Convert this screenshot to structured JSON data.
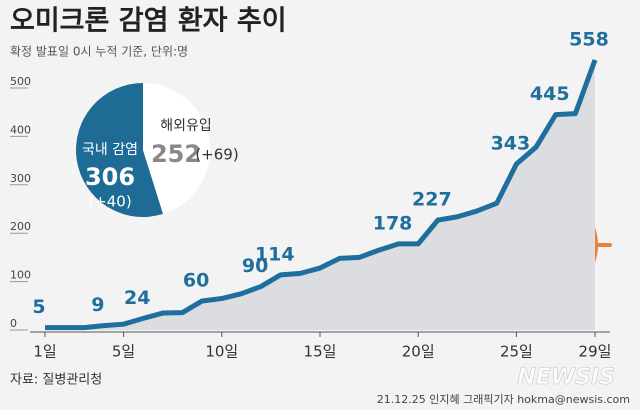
{
  "chart_data": [
    {
      "type": "area-line",
      "title": "오미크론 감염 환자 추이",
      "subtitle": "확정 발표일 0시 누적 기준, 단위:명",
      "x": [
        1,
        2,
        3,
        4,
        5,
        6,
        7,
        8,
        9,
        10,
        11,
        12,
        13,
        14,
        15,
        16,
        17,
        18,
        19,
        20,
        21,
        22,
        23,
        24,
        25,
        26,
        27,
        28,
        29
      ],
      "values": [
        5,
        5,
        5,
        9,
        12,
        24,
        35,
        36,
        60,
        65,
        75,
        90,
        114,
        117,
        128,
        148,
        150,
        165,
        178,
        178,
        227,
        234,
        246,
        262,
        343,
        378,
        445,
        447,
        558
      ],
      "value_labels": [
        5,
        null,
        null,
        9,
        null,
        24,
        null,
        null,
        60,
        null,
        null,
        90,
        114,
        null,
        null,
        null,
        null,
        null,
        178,
        null,
        227,
        null,
        null,
        null,
        343,
        null,
        445,
        null,
        558
      ],
      "color": "#1f6f9e",
      "area_color": "#dcdde0",
      "xlim": [
        1,
        29
      ],
      "xticks": [
        {
          "value": 1,
          "label": "1일"
        },
        {
          "value": 5,
          "label": "5일"
        },
        {
          "value": 10,
          "label": "10일"
        },
        {
          "value": 15,
          "label": "15일"
        },
        {
          "value": 20,
          "label": "20일"
        },
        {
          "value": 25,
          "label": "25일"
        },
        {
          "value": 29,
          "label": "29일"
        }
      ],
      "ylim": [
        0,
        500
      ],
      "yticks": [
        0,
        100,
        200,
        300,
        400,
        500
      ],
      "source": "자료: 질병관리청",
      "credit": "21.12.25 인지혜 그래픽기자 hokma@newsis.com",
      "watermark": "NEWSIS"
    },
    {
      "type": "pie",
      "labels": [
        "국내 감염",
        "해외유입"
      ],
      "values": [
        306,
        252
      ],
      "change_labels": [
        "(+40)",
        "(+69)"
      ],
      "colors": [
        "#1e6b96",
        "#ffffff"
      ]
    }
  ]
}
